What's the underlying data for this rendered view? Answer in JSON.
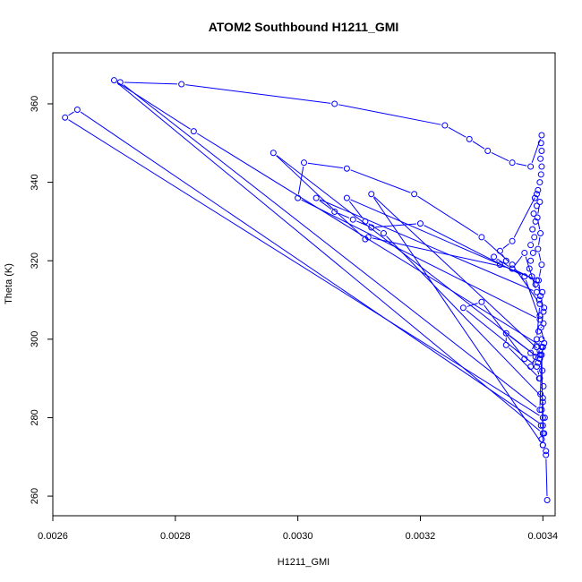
{
  "chart_data": {
    "type": "line",
    "title": "ATOM2 Southbound H1211_GMI",
    "xlabel": "H1211_GMI",
    "ylabel": "Theta (K)",
    "xlim": [
      0.0026,
      0.00342
    ],
    "ylim": [
      255,
      373
    ],
    "xticks": [
      0.0026,
      0.0028,
      0.003,
      0.0032,
      0.0034
    ],
    "xtick_labels": [
      "0.0026",
      "0.0028",
      "0.0030",
      "0.0032",
      "0.0034"
    ],
    "yticks": [
      260,
      280,
      300,
      320,
      340,
      360
    ],
    "ytick_labels": [
      "260",
      "280",
      "300",
      "320",
      "340",
      "360"
    ],
    "grid": false,
    "legend": "none",
    "series_color": "#0000ff",
    "series": [
      {
        "points": [
          [
            0.003407,
            259.0
          ],
          [
            0.003405,
            270.5
          ],
          [
            0.003405,
            271.5
          ],
          [
            0.0034,
            273.0
          ],
          [
            0.003398,
            274.5
          ],
          [
            0.003402,
            276.0
          ],
          [
            0.003397,
            278.0
          ],
          [
            0.003403,
            280.0
          ],
          [
            0.003398,
            282.0
          ],
          [
            0.0034,
            284.0
          ],
          [
            0.003396,
            286.0
          ],
          [
            0.003401,
            288.0
          ],
          [
            0.003394,
            290.0
          ],
          [
            0.003399,
            292.0
          ],
          [
            0.003392,
            294.0
          ],
          [
            0.003396,
            296.0
          ],
          [
            0.00339,
            298.0
          ],
          [
            0.003398,
            300.0
          ],
          [
            0.003393,
            302.0
          ],
          [
            0.003401,
            304.0
          ],
          [
            0.003395,
            306.0
          ],
          [
            0.003402,
            308.0
          ],
          [
            0.003394,
            310.0
          ],
          [
            0.003399,
            312.0
          ],
          [
            0.003388,
            314.0
          ],
          [
            0.003382,
            316.0
          ],
          [
            0.003378,
            318.0
          ],
          [
            0.00338,
            320.0
          ],
          [
            0.003384,
            322.0
          ],
          [
            0.00338,
            324.0
          ],
          [
            0.003386,
            326.0
          ],
          [
            0.003383,
            328.0
          ],
          [
            0.003388,
            330.0
          ],
          [
            0.003385,
            332.0
          ],
          [
            0.00339,
            334.0
          ],
          [
            0.003387,
            336.0
          ],
          [
            0.003392,
            338.0
          ],
          [
            0.003395,
            340.0
          ],
          [
            0.003397,
            342.0
          ],
          [
            0.003398,
            344.0
          ],
          [
            0.003396,
            346.0
          ],
          [
            0.003398,
            348.0
          ],
          [
            0.003397,
            350.0
          ],
          [
            0.003398,
            352.0
          ],
          [
            0.00338,
            344.0
          ],
          [
            0.00335,
            345.0
          ],
          [
            0.00331,
            348.0
          ],
          [
            0.00328,
            351.0
          ],
          [
            0.00324,
            354.5
          ],
          [
            0.00306,
            360.0
          ],
          [
            0.00281,
            365.0
          ],
          [
            0.00271,
            365.5
          ],
          [
            0.003395,
            282.0
          ],
          [
            0.003398,
            296.0
          ],
          [
            0.003402,
            299.0
          ],
          [
            0.003397,
            303.0
          ],
          [
            0.003401,
            307.0
          ],
          [
            0.003396,
            311.0
          ],
          [
            0.003393,
            315.0
          ],
          [
            0.003398,
            319.0
          ],
          [
            0.003392,
            323.0
          ],
          [
            0.003396,
            327.0
          ],
          [
            0.003391,
            331.0
          ],
          [
            0.003395,
            335.0
          ],
          [
            0.00339,
            337.0
          ],
          [
            0.00335,
            325.0
          ],
          [
            0.00333,
            322.5
          ],
          [
            0.00334,
            320.0
          ],
          [
            0.00333,
            319.0
          ],
          [
            0.00332,
            321.0
          ],
          [
            0.00335,
            318.0
          ],
          [
            0.00337,
            322.0
          ],
          [
            0.00339,
            312.0
          ],
          [
            0.00303,
            336.0
          ],
          [
            0.00306,
            332.5
          ],
          [
            0.00309,
            330.5
          ],
          [
            0.00312,
            328.5
          ],
          [
            0.0032,
            329.5
          ],
          [
            0.00337,
            316.0
          ],
          [
            0.003395,
            305.0
          ],
          [
            0.003,
            336.0
          ],
          [
            0.00301,
            345.0
          ],
          [
            0.00308,
            343.5
          ],
          [
            0.00319,
            337.0
          ],
          [
            0.0033,
            326.0
          ],
          [
            0.00335,
            319.0
          ],
          [
            0.003395,
            309.0
          ],
          [
            0.00339,
            300.0
          ],
          [
            0.00338,
            296.5
          ],
          [
            0.00337,
            295.0
          ],
          [
            0.0033,
            309.5
          ],
          [
            0.00327,
            308.0
          ],
          [
            0.00339,
            293.0
          ],
          [
            0.003395,
            290.0
          ],
          [
            0.00334,
            298.5
          ],
          [
            0.00334,
            301.5
          ],
          [
            0.003395,
            295.0
          ],
          [
            0.00296,
            347.5
          ],
          [
            0.00311,
            325.5
          ],
          [
            0.003115,
            326.0
          ],
          [
            0.00335,
            318.0
          ],
          [
            0.00339,
            315.0
          ],
          [
            0.00308,
            336.0
          ],
          [
            0.00311,
            330.0
          ],
          [
            0.00314,
            327.0
          ],
          [
            0.0034,
            285.0
          ],
          [
            0.0034,
            278.0
          ],
          [
            0.00264,
            358.5
          ],
          [
            0.00262,
            356.5
          ],
          [
            0.0034,
            280.0
          ],
          [
            0.0034,
            276.0
          ],
          [
            0.0027,
            366.0
          ],
          [
            0.00283,
            353.0
          ],
          [
            0.0034,
            298.0
          ],
          [
            0.003395,
            297.0
          ],
          [
            0.00312,
            337.0
          ],
          [
            0.0034,
            273.0
          ],
          [
            0.003398,
            298.0
          ],
          [
            0.00338,
            293.0
          ],
          [
            0.003388,
            295.5
          ]
        ]
      }
    ]
  }
}
